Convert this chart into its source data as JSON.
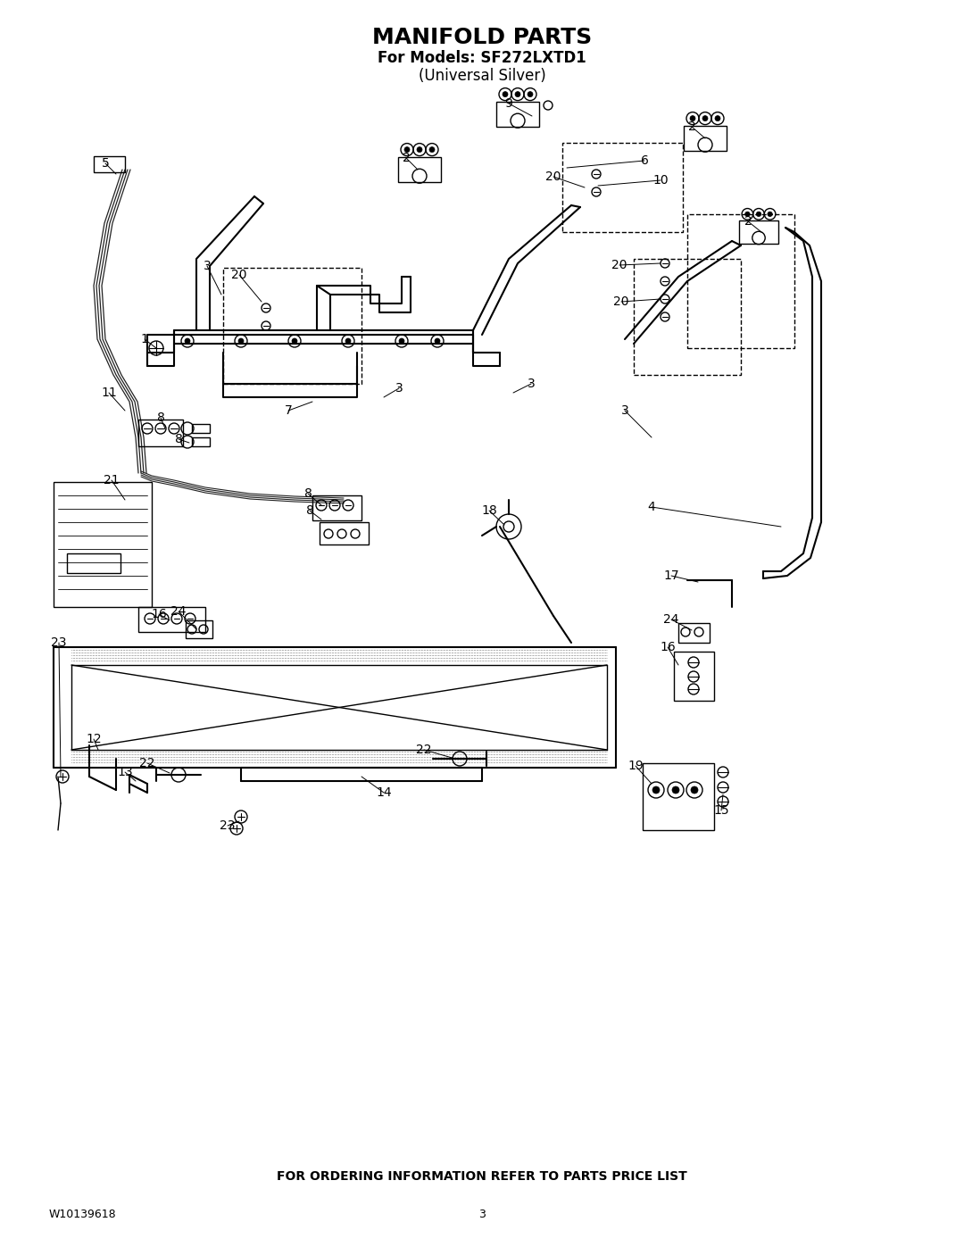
{
  "title": "MANIFOLD PARTS",
  "subtitle1": "For Models: SF272LXTD1",
  "subtitle2": "(Universal Silver)",
  "footer_text": "FOR ORDERING INFORMATION REFER TO PARTS PRICE LIST",
  "part_number": "W10139618",
  "page_number": "3",
  "bg": "#ffffff",
  "lc": "#000000",
  "title_fs": 18,
  "sub_fs": 12,
  "foot_fs": 9,
  "lbl_fs": 10
}
